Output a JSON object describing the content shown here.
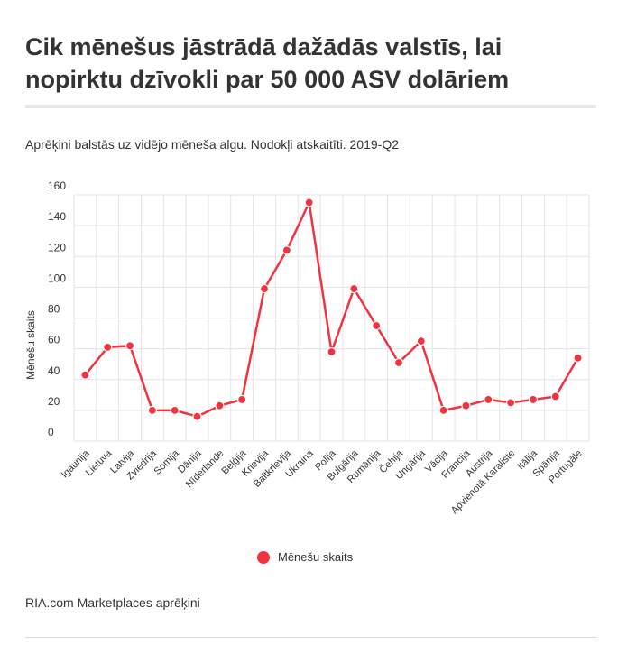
{
  "title": "Cik mēnešus jāstrādā dažādās valstīs, lai nopirktu dzīvokli par 50 000 ASV dolāriem",
  "subtitle": "Aprēķini balstās uz vidējo mēneša algu. Nodokļi atskaitīti. 2019-Q2",
  "footer": "RIA.com Marketplaces aprēķini",
  "chart_data": {
    "type": "line",
    "ylabel": "Mēnešu skaits",
    "xlabel": "",
    "ylim": [
      0,
      160
    ],
    "yticks": [
      0,
      20,
      40,
      60,
      80,
      100,
      120,
      140,
      160
    ],
    "grid": true,
    "legend_position": "bottom",
    "categories": [
      "Igaunija",
      "Lietuva",
      "Latvija",
      "Zviedrija",
      "Somija",
      "Dānija",
      "Nīderlande",
      "Beļģija",
      "Krievija",
      "Baltkrievija",
      "Ukraina",
      "Polija",
      "Bulgārija",
      "Rumānija",
      "Čehija",
      "Ungārija",
      "Vācija",
      "Francija",
      "Austrija",
      "Apvienotā Karaliste",
      "Itālija",
      "Spānija",
      "Portugāle"
    ],
    "series": [
      {
        "name": "Mēnešu skaits",
        "color": "#f33240",
        "values": [
          43,
          61,
          62,
          20,
          20,
          16,
          23,
          27,
          99,
          124,
          155,
          58,
          99,
          75,
          51,
          65,
          20,
          23,
          27,
          25,
          27,
          29,
          54
        ]
      }
    ]
  }
}
